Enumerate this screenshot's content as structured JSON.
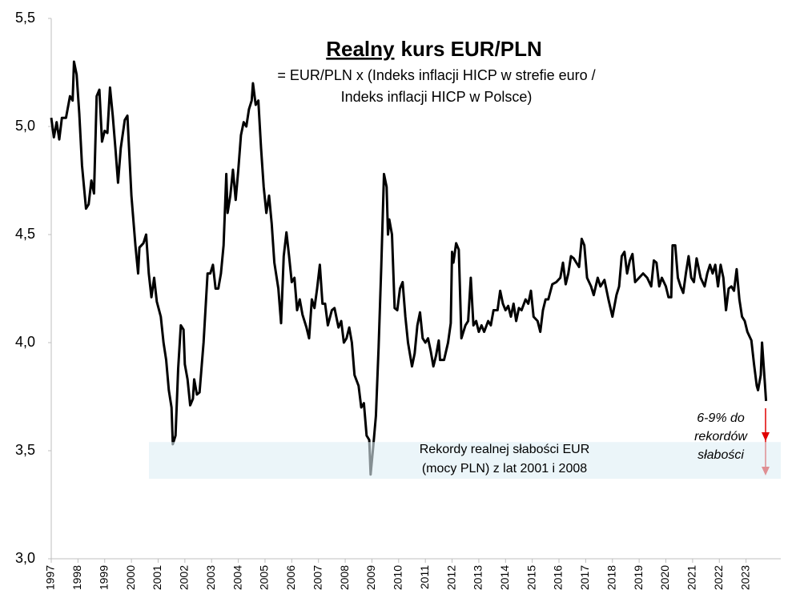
{
  "chart_data": {
    "type": "line",
    "title": [
      "Realny",
      "kurs EUR/PLN"
    ],
    "subtitle": [
      "= EUR/PLN x (Indeks inflacji HICP w strefie euro /",
      "Indeks inflacji HICP w Polsce)"
    ],
    "annotations": {
      "band_text": [
        "Rekordy realnej słabości EUR",
        "(mocy PLN) z lat 2001 i 2008"
      ],
      "arrow_text": [
        "6-9% do",
        "rekordów",
        "słabości"
      ]
    },
    "highlight_band": [
      3.37,
      3.54
    ],
    "color": "#000000",
    "xlim": [
      1997,
      2024.3
    ],
    "xticks": [
      1997,
      1998,
      1999,
      2000,
      2001,
      2002,
      2003,
      2004,
      2005,
      2006,
      2007,
      2008,
      2009,
      2010,
      2011,
      2012,
      2013,
      2014,
      2015,
      2016,
      2017,
      2018,
      2019,
      2020,
      2021,
      2022,
      2023
    ],
    "ylim": [
      3.0,
      5.5
    ],
    "yticks": [
      {
        "value": 3.0,
        "label": "3,0"
      },
      {
        "value": 3.5,
        "label": "3,5"
      },
      {
        "value": 4.0,
        "label": "4,0"
      },
      {
        "value": 4.5,
        "label": "4,5"
      },
      {
        "value": 5.0,
        "label": "5,0"
      },
      {
        "value": 5.5,
        "label": "5,5"
      }
    ],
    "x": [
      1997.0,
      1997.1,
      1997.2,
      1997.3,
      1997.4,
      1997.55,
      1997.7,
      1997.8,
      1997.85,
      1997.95,
      1998.05,
      1998.15,
      1998.3,
      1998.4,
      1998.5,
      1998.6,
      1998.7,
      1998.8,
      1998.9,
      1999.0,
      1999.1,
      1999.2,
      1999.3,
      1999.4,
      1999.5,
      1999.6,
      1999.75,
      1999.85,
      2000.0,
      2000.15,
      2000.25,
      2000.3,
      2000.45,
      2000.55,
      2000.65,
      2000.75,
      2000.85,
      2000.95,
      2001.1,
      2001.2,
      2001.3,
      2001.4,
      2001.5,
      2001.55,
      2001.65,
      2001.75,
      2001.85,
      2001.95,
      2002.0,
      2002.1,
      2002.2,
      2002.3,
      2002.35,
      2002.45,
      2002.55,
      2002.7,
      2002.85,
      2002.95,
      2003.05,
      2003.15,
      2003.25,
      2003.35,
      2003.45,
      2003.55,
      2003.6,
      2003.7,
      2003.8,
      2003.9,
      2004.0,
      2004.1,
      2004.2,
      2004.3,
      2004.4,
      2004.5,
      2004.55,
      2004.65,
      2004.75,
      2004.85,
      2004.95,
      2005.05,
      2005.15,
      2005.25,
      2005.35,
      2005.5,
      2005.6,
      2005.7,
      2005.8,
      2005.9,
      2006.0,
      2006.1,
      2006.2,
      2006.3,
      2006.4,
      2006.55,
      2006.65,
      2006.75,
      2006.85,
      2006.95,
      2007.05,
      2007.15,
      2007.25,
      2007.35,
      2007.5,
      2007.6,
      2007.75,
      2007.85,
      2007.95,
      2008.05,
      2008.15,
      2008.25,
      2008.35,
      2008.5,
      2008.6,
      2008.7,
      2008.8,
      2008.9,
      2008.95,
      2009.05,
      2009.15,
      2009.25,
      2009.35,
      2009.45,
      2009.55,
      2009.6,
      2009.65,
      2009.75,
      2009.85,
      2009.95,
      2010.05,
      2010.15,
      2010.25,
      2010.35,
      2010.5,
      2010.6,
      2010.7,
      2010.8,
      2010.9,
      2011.0,
      2011.1,
      2011.2,
      2011.3,
      2011.4,
      2011.5,
      2011.55,
      2011.7,
      2011.85,
      2011.95,
      2012.0,
      2012.05,
      2012.15,
      2012.25,
      2012.35,
      2012.5,
      2012.6,
      2012.7,
      2012.8,
      2012.9,
      2013.0,
      2013.1,
      2013.2,
      2013.35,
      2013.45,
      2013.55,
      2013.7,
      2013.8,
      2013.9,
      2014.0,
      2014.1,
      2014.2,
      2014.3,
      2014.4,
      2014.5,
      2014.6,
      2014.75,
      2014.85,
      2014.95,
      2015.05,
      2015.2,
      2015.3,
      2015.4,
      2015.5,
      2015.6,
      2015.75,
      2015.9,
      2016.05,
      2016.15,
      2016.25,
      2016.35,
      2016.45,
      2016.55,
      2016.65,
      2016.75,
      2016.85,
      2016.95,
      2017.05,
      2017.2,
      2017.3,
      2017.45,
      2017.55,
      2017.7,
      2017.85,
      2018.0,
      2018.15,
      2018.25,
      2018.35,
      2018.45,
      2018.55,
      2018.65,
      2018.75,
      2018.85,
      2019.0,
      2019.15,
      2019.3,
      2019.45,
      2019.55,
      2019.65,
      2019.75,
      2019.85,
      2020.0,
      2020.1,
      2020.2,
      2020.25,
      2020.35,
      2020.45,
      2020.55,
      2020.65,
      2020.75,
      2020.85,
      2020.95,
      2021.05,
      2021.15,
      2021.3,
      2021.45,
      2021.55,
      2021.65,
      2021.75,
      2021.85,
      2021.95,
      2022.05,
      2022.15,
      2022.25,
      2022.35,
      2022.45,
      2022.55,
      2022.65,
      2022.75,
      2022.85,
      2022.95,
      2023.05,
      2023.2,
      2023.3,
      2023.4,
      2023.45,
      2023.55,
      2023.6,
      2023.7,
      2023.75
    ],
    "values": [
      5.04,
      4.95,
      5.02,
      4.94,
      5.04,
      5.04,
      5.14,
      5.12,
      5.3,
      5.24,
      5.06,
      4.82,
      4.62,
      4.64,
      4.75,
      4.69,
      5.14,
      5.17,
      4.93,
      4.98,
      4.97,
      5.18,
      5.05,
      4.9,
      4.74,
      4.9,
      5.03,
      5.05,
      4.68,
      4.45,
      4.32,
      4.44,
      4.46,
      4.5,
      4.32,
      4.21,
      4.3,
      4.19,
      4.12,
      4.0,
      3.92,
      3.78,
      3.7,
      3.53,
      3.57,
      3.88,
      4.08,
      4.06,
      3.9,
      3.83,
      3.71,
      3.74,
      3.83,
      3.76,
      3.77,
      4.0,
      4.32,
      4.32,
      4.36,
      4.25,
      4.25,
      4.32,
      4.45,
      4.78,
      4.6,
      4.68,
      4.8,
      4.66,
      4.8,
      4.96,
      5.02,
      5.0,
      5.08,
      5.12,
      5.2,
      5.1,
      5.12,
      4.9,
      4.72,
      4.6,
      4.68,
      4.55,
      4.37,
      4.25,
      4.09,
      4.4,
      4.51,
      4.4,
      4.28,
      4.3,
      4.15,
      4.2,
      4.13,
      4.07,
      4.02,
      4.2,
      4.16,
      4.25,
      4.36,
      4.18,
      4.18,
      4.08,
      4.15,
      4.16,
      4.07,
      4.1,
      4.0,
      4.02,
      4.07,
      4.0,
      3.85,
      3.8,
      3.7,
      3.72,
      3.57,
      3.55,
      3.39,
      3.52,
      3.66,
      3.98,
      4.35,
      4.78,
      4.72,
      4.5,
      4.57,
      4.5,
      4.16,
      4.15,
      4.25,
      4.28,
      4.12,
      4.0,
      3.89,
      3.95,
      4.08,
      4.14,
      4.02,
      4.0,
      4.02,
      3.96,
      3.89,
      3.94,
      4.01,
      3.92,
      3.92,
      4.0,
      4.09,
      4.42,
      4.37,
      4.46,
      4.43,
      4.02,
      4.08,
      4.1,
      4.3,
      4.08,
      4.1,
      4.05,
      4.08,
      4.05,
      4.1,
      4.08,
      4.15,
      4.15,
      4.24,
      4.18,
      4.15,
      4.17,
      4.12,
      4.18,
      4.1,
      4.16,
      4.15,
      4.2,
      4.18,
      4.24,
      4.12,
      4.1,
      4.05,
      4.15,
      4.2,
      4.2,
      4.27,
      4.28,
      4.3,
      4.37,
      4.27,
      4.32,
      4.4,
      4.39,
      4.37,
      4.35,
      4.48,
      4.45,
      4.3,
      4.26,
      4.22,
      4.3,
      4.26,
      4.29,
      4.2,
      4.12,
      4.22,
      4.26,
      4.4,
      4.42,
      4.32,
      4.38,
      4.41,
      4.28,
      4.3,
      4.32,
      4.3,
      4.26,
      4.38,
      4.37,
      4.26,
      4.3,
      4.26,
      4.21,
      4.21,
      4.45,
      4.45,
      4.3,
      4.26,
      4.23,
      4.32,
      4.4,
      4.3,
      4.28,
      4.39,
      4.3,
      4.26,
      4.32,
      4.36,
      4.32,
      4.36,
      4.26,
      4.36,
      4.3,
      4.15,
      4.25,
      4.26,
      4.24,
      4.34,
      4.2,
      4.12,
      4.1,
      4.05,
      4.01,
      3.9,
      3.8,
      3.78,
      3.85,
      4.0,
      3.82,
      3.73
    ]
  }
}
